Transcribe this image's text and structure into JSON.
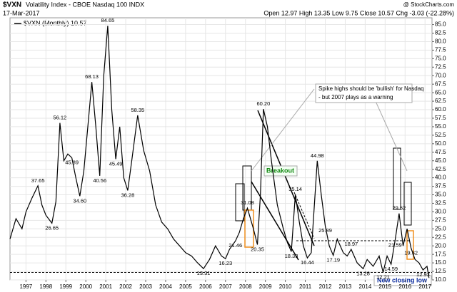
{
  "chart_data": {
    "type": "line",
    "symbol": "$VXN",
    "title": "Volatility Index - CBOE Nasdaq 100 INDX",
    "source": "@ StockCharts.com",
    "date": "17-Mar-2017",
    "quote": "Open 12.97 High 13.35 Low 9.75 Close 10.57 Chg -3.03 (-22.28%)",
    "annotations": {
      "breakout": "Breakout",
      "callout": [
        "Spike highs should be 'bullish' for Nasdaq",
        "- but 2007 plays as a warning"
      ],
      "low": "New closing low"
    },
    "hline": 12.21,
    "grid": true,
    "xlim": [
      1996.2,
      2017.35
    ],
    "xticks": [
      {
        "value": 1997,
        "label": "1997"
      },
      {
        "value": 1998,
        "label": "1998"
      },
      {
        "value": 1999,
        "label": "1999"
      },
      {
        "value": 2000,
        "label": "2000"
      },
      {
        "value": 2001,
        "label": "2001"
      },
      {
        "value": 2002,
        "label": "2002"
      },
      {
        "value": 2003,
        "label": "2003"
      },
      {
        "value": 2004,
        "label": "2004"
      },
      {
        "value": 2005,
        "label": "2005"
      },
      {
        "value": 2006,
        "label": "2006"
      },
      {
        "value": 2007,
        "label": "2007"
      },
      {
        "value": 2008,
        "label": "2008"
      },
      {
        "value": 2009,
        "label": "2009"
      },
      {
        "value": 2010,
        "label": "2010"
      },
      {
        "value": 2011,
        "label": "2011"
      },
      {
        "value": 2012,
        "label": "2012"
      },
      {
        "value": 2013,
        "label": "2013"
      },
      {
        "value": 2014,
        "label": "2014"
      },
      {
        "value": 2015,
        "label": "2015"
      },
      {
        "value": 2016,
        "label": "2016"
      },
      {
        "value": 2017,
        "label": "2017"
      }
    ],
    "ylim": [
      10,
      87
    ],
    "yticks": [
      {
        "value": 85,
        "label": "85.0"
      },
      {
        "value": 82.5,
        "label": "82.5"
      },
      {
        "value": 80,
        "label": "80.0"
      },
      {
        "value": 77.5,
        "label": "77.5"
      },
      {
        "value": 75,
        "label": "75.0"
      },
      {
        "value": 72.5,
        "label": "72.5"
      },
      {
        "value": 70,
        "label": "70.0"
      },
      {
        "value": 67.5,
        "label": "67.5"
      },
      {
        "value": 65,
        "label": "65.0"
      },
      {
        "value": 62.5,
        "label": "62.5"
      },
      {
        "value": 60,
        "label": "60.0"
      },
      {
        "value": 57.5,
        "label": "57.5"
      },
      {
        "value": 55,
        "label": "55.0"
      },
      {
        "value": 52.5,
        "label": "52.5"
      },
      {
        "value": 50,
        "label": "50.0"
      },
      {
        "value": 47.5,
        "label": "47.5"
      },
      {
        "value": 45,
        "label": "45.0"
      },
      {
        "value": 42.5,
        "label": "42.5"
      },
      {
        "value": 40,
        "label": "40.0"
      },
      {
        "value": 37.5,
        "label": "37.5"
      },
      {
        "value": 35,
        "label": "35.0"
      },
      {
        "value": 32.5,
        "label": "32.5"
      },
      {
        "value": 30,
        "label": "30.0"
      },
      {
        "value": 27.5,
        "label": "27.5"
      },
      {
        "value": 25,
        "label": "25.0"
      },
      {
        "value": 22.5,
        "label": "22.5"
      },
      {
        "value": 20,
        "label": "20.0"
      },
      {
        "value": 17.5,
        "label": "17.5"
      },
      {
        "value": 15,
        "label": "15.0"
      },
      {
        "value": 12.5,
        "label": "12.5"
      },
      {
        "value": 10,
        "label": "10.0"
      }
    ],
    "series": [
      {
        "name": "$VXN (Monthly) 10.57",
        "color": "#000000",
        "x": [
          1996.2,
          1996.5,
          1996.8,
          1997.0,
          1997.3,
          1997.6,
          1997.8,
          1998.0,
          1998.3,
          1998.5,
          1998.7,
          1998.9,
          1999.1,
          1999.3,
          1999.5,
          1999.7,
          1999.9,
          2000.1,
          2000.3,
          2000.5,
          2000.7,
          2000.9,
          2001.1,
          2001.3,
          2001.5,
          2001.7,
          2001.9,
          2002.1,
          2002.3,
          2002.6,
          2002.9,
          2003.2,
          2003.5,
          2003.8,
          2004.1,
          2004.4,
          2004.7,
          2005.0,
          2005.3,
          2005.6,
          2005.9,
          2006.2,
          2006.5,
          2006.8,
          2007.0,
          2007.2,
          2007.5,
          2007.7,
          2007.9,
          2008.1,
          2008.4,
          2008.6,
          2008.75,
          2008.9,
          2009.1,
          2009.3,
          2009.6,
          2009.9,
          2010.1,
          2010.3,
          2010.5,
          2010.7,
          2010.9,
          2011.1,
          2011.3,
          2011.6,
          2011.8,
          2012.0,
          2012.2,
          2012.4,
          2012.6,
          2012.9,
          2013.1,
          2013.3,
          2013.6,
          2013.9,
          2014.1,
          2014.4,
          2014.7,
          2014.9,
          2015.1,
          2015.3,
          2015.5,
          2015.7,
          2015.9,
          2016.1,
          2016.3,
          2016.5,
          2016.7,
          2016.9,
          2017.1,
          2017.2
        ],
        "values": [
          22,
          28,
          25,
          30,
          34,
          37.65,
          32,
          29,
          26.65,
          33,
          56.12,
          45,
          47,
          45.89,
          40,
          34.6,
          42,
          55,
          68.13,
          55,
          40.56,
          70,
          84.65,
          60,
          45.49,
          55,
          40,
          36.28,
          45,
          58.35,
          48,
          42,
          32,
          27,
          25,
          22,
          20,
          18,
          17,
          15,
          13.31,
          16,
          20,
          17,
          16.23,
          19,
          21.46,
          24,
          28,
          31.08,
          25,
          20.35,
          35,
          60.2,
          55,
          45,
          32,
          25,
          21,
          18.33,
          35.14,
          27,
          20,
          16.44,
          18,
          44.98,
          35,
          25.89,
          20,
          17.19,
          22,
          18,
          17,
          18.97,
          15,
          13.28,
          16,
          14,
          17,
          12.21,
          17,
          14.59,
          21.59,
          29.52,
          20,
          25,
          19.32,
          16,
          15,
          12.93,
          14,
          10.57
        ],
        "value_labels": [
          null,
          null,
          null,
          null,
          null,
          "37.65",
          null,
          null,
          "26.65",
          null,
          "56.12",
          null,
          null,
          "45.89",
          null,
          "34.60",
          null,
          null,
          "68.13",
          null,
          "40.56",
          null,
          "84.65",
          null,
          "45.49",
          null,
          null,
          "36.28",
          null,
          "58.35",
          null,
          null,
          null,
          null,
          null,
          null,
          null,
          null,
          null,
          null,
          "13.31",
          null,
          null,
          null,
          "16.23",
          null,
          "21.46",
          null,
          null,
          "31.08",
          null,
          "20.35",
          null,
          "60.20",
          null,
          null,
          null,
          null,
          null,
          "18.33",
          "35.14",
          null,
          null,
          "16.44",
          null,
          "44.98",
          null,
          "25.89",
          null,
          "17.19",
          null,
          null,
          null,
          "18.97",
          null,
          "13.28",
          null,
          null,
          null,
          "12.21",
          null,
          "14.59",
          "21.59",
          "29.52",
          null,
          null,
          "19.32",
          null,
          null,
          "12.93",
          null,
          null
        ]
      }
    ]
  }
}
